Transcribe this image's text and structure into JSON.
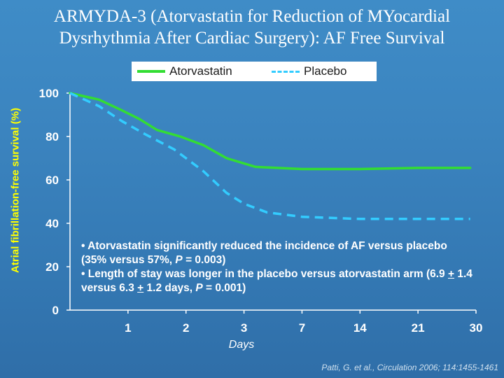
{
  "slide": {
    "title_line1": "ARMYDA-3 (Atorvastatin for Reduction of MYocardial",
    "title_line2": "Dysrhythmia After Cardiac Surgery): AF Free Survival",
    "citation": "Patti, G. et al., Circulation 2006; 114:1455-1461"
  },
  "notes": {
    "b1_prefix": "• Atorvastatin significantly reduced the incidence of AF versus placebo (35% versus 57%, ",
    "b1_p": "P",
    "b1_suffix": " = 0.003)",
    "b2_prefix": "• Length of stay was longer in the placebo versus atorvastatin arm (6.9 ",
    "b2_pm1": "+",
    "b2_mid": " 1.4 versus 6.3 ",
    "b2_pm2": "+",
    "b2_mid2": " 1.2 days, ",
    "b2_p": "P",
    "b2_suffix": " = 0.001)"
  },
  "colors": {
    "atorvastatin": "#33dd33",
    "placebo": "#33ccff",
    "axis": "#ffffff"
  },
  "chart_data": {
    "type": "line",
    "xlabel": "Days",
    "ylabel": "Atrial fibrillation-free survival (%)",
    "categories": [
      "1",
      "2",
      "3",
      "7",
      "14",
      "21",
      "30"
    ],
    "x": [
      0,
      1,
      2,
      3,
      4,
      5,
      6,
      7
    ],
    "ylim": [
      0,
      100
    ],
    "yticks": [
      0,
      20,
      40,
      60,
      80,
      100
    ],
    "grid": false,
    "legend_position": "top",
    "series": [
      {
        "name": "Atorvastatin",
        "style": "solid",
        "x": [
          0,
          0.5,
          0.9,
          1.2,
          1.5,
          1.9,
          2.3,
          2.7,
          3.2,
          4,
          5,
          6,
          6.9
        ],
        "y": [
          100,
          97,
          92,
          88,
          83,
          80,
          76,
          70,
          66,
          65,
          65,
          65.5,
          65.5
        ]
      },
      {
        "name": "Placebo",
        "style": "dashed",
        "x": [
          0,
          0.5,
          0.9,
          1.3,
          1.8,
          2.3,
          2.7,
          3.0,
          3.4,
          4,
          5,
          6,
          6.9
        ],
        "y": [
          100,
          94,
          87,
          81,
          74,
          64,
          54,
          49,
          45,
          43,
          42,
          42,
          42
        ]
      }
    ]
  }
}
